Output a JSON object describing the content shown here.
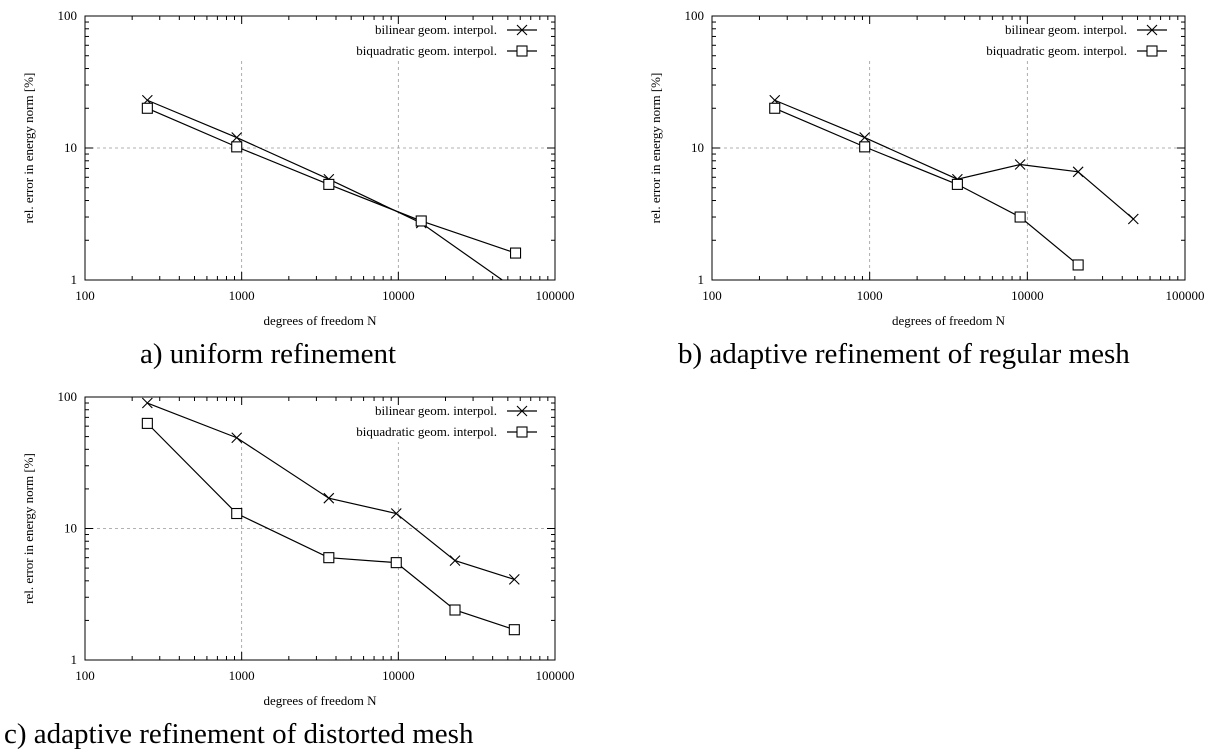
{
  "chart_data": [
    {
      "type": "line",
      "xscale": "log",
      "yscale": "log",
      "xlim": [
        100,
        100000
      ],
      "ylim": [
        1,
        100
      ],
      "xticks": [
        "100",
        "1000",
        "10000",
        "100000"
      ],
      "yticks": [
        "1",
        "10",
        "100"
      ],
      "xlabel": "degrees of freedom N",
      "ylabel": "rel. error in energy norm [%]",
      "grid": true,
      "legend": "top-right",
      "caption": "a) uniform refinement",
      "series": [
        {
          "name": "bilinear geom. interpol.",
          "marker": "x",
          "x": [
            250,
            930,
            3600,
            14000,
            56000
          ],
          "y": [
            23,
            12,
            5.8,
            2.7,
            0.85
          ]
        },
        {
          "name": "biquadratic geom. interpol.",
          "marker": "square",
          "x": [
            250,
            930,
            3600,
            14000,
            56000
          ],
          "y": [
            20,
            10.2,
            5.3,
            2.8,
            1.6
          ]
        }
      ]
    },
    {
      "type": "line",
      "xscale": "log",
      "yscale": "log",
      "xlim": [
        100,
        100000
      ],
      "ylim": [
        1,
        100
      ],
      "xticks": [
        "100",
        "1000",
        "10000",
        "100000"
      ],
      "yticks": [
        "1",
        "10",
        "100"
      ],
      "xlabel": "degrees of freedom N",
      "ylabel": "rel. error in energy norm [%]",
      "grid": true,
      "legend": "top-right",
      "caption": "b) adaptive refinement of regular mesh",
      "series": [
        {
          "name": "bilinear geom. interpol.",
          "marker": "x",
          "x": [
            250,
            930,
            3600,
            9000,
            21000,
            47000
          ],
          "y": [
            23,
            12,
            5.8,
            7.5,
            6.6,
            2.9
          ]
        },
        {
          "name": "biquadratic geom. interpol.",
          "marker": "square",
          "x": [
            250,
            930,
            3600,
            9000,
            21000
          ],
          "y": [
            20,
            10.2,
            5.3,
            3.0,
            1.3
          ]
        }
      ]
    },
    {
      "type": "line",
      "xscale": "log",
      "yscale": "log",
      "xlim": [
        100,
        100000
      ],
      "ylim": [
        1,
        100
      ],
      "xticks": [
        "100",
        "1000",
        "10000",
        "100000"
      ],
      "yticks": [
        "1",
        "10",
        "100"
      ],
      "xlabel": "degrees of freedom N",
      "ylabel": "rel. error in energy norm [%]",
      "grid": true,
      "legend": "top-right",
      "caption": "c) adaptive refinement of distorted mesh",
      "series": [
        {
          "name": "bilinear geom. interpol.",
          "marker": "x",
          "x": [
            250,
            930,
            3600,
            9700,
            23000,
            55000
          ],
          "y": [
            90,
            49,
            17,
            13,
            5.7,
            4.1
          ]
        },
        {
          "name": "biquadratic geom. interpol.",
          "marker": "square",
          "x": [
            250,
            930,
            3600,
            9700,
            23000,
            55000
          ],
          "y": [
            63,
            13,
            6.0,
            5.5,
            2.4,
            1.7
          ]
        }
      ]
    }
  ]
}
